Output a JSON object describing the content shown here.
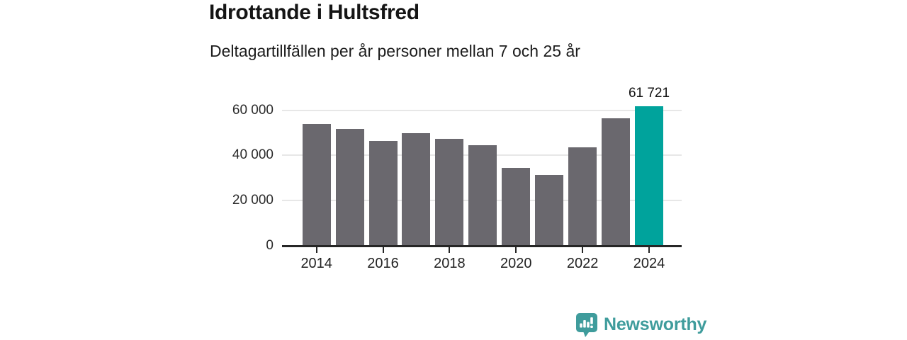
{
  "header": {
    "title": "Idrottande i Hultsfred",
    "subtitle": "Deltagartillfällen per år personer mellan 7 och 25 år"
  },
  "chart_data": {
    "type": "bar",
    "title": "Idrottande i Hultsfred",
    "subtitle": "Deltagartillfällen per år personer mellan 7 och 25 år",
    "xlabel": "",
    "ylabel": "",
    "categories": [
      "2014",
      "2015",
      "2016",
      "2017",
      "2018",
      "2019",
      "2020",
      "2021",
      "2022",
      "2023",
      "2024"
    ],
    "values": [
      53900,
      51600,
      46350,
      49800,
      47200,
      44500,
      34500,
      31300,
      43600,
      56300,
      61721
    ],
    "highlight_index": 10,
    "highlight_value_label": "61 721",
    "y_ticks": [
      {
        "value": 0,
        "label": "0"
      },
      {
        "value": 20000,
        "label": "20 000"
      },
      {
        "value": 40000,
        "label": "40 000"
      },
      {
        "value": 60000,
        "label": "60 000"
      }
    ],
    "x_tick_labels": [
      "2014",
      "2016",
      "2018",
      "2020",
      "2022",
      "2024"
    ],
    "ylim": [
      0,
      65000
    ],
    "grid": true,
    "legend_position": "none",
    "colors": {
      "bar": "#6a686e",
      "highlight": "#00a39c",
      "axis": "#262626",
      "gridline": "#e7e7e7",
      "tick_label": "#2b2b2b"
    }
  },
  "footer": {
    "brand_name": "Newsworthy",
    "brand_color": "#3f9c9c",
    "logo_icon": "bar-chart-speech-bubble-icon"
  }
}
